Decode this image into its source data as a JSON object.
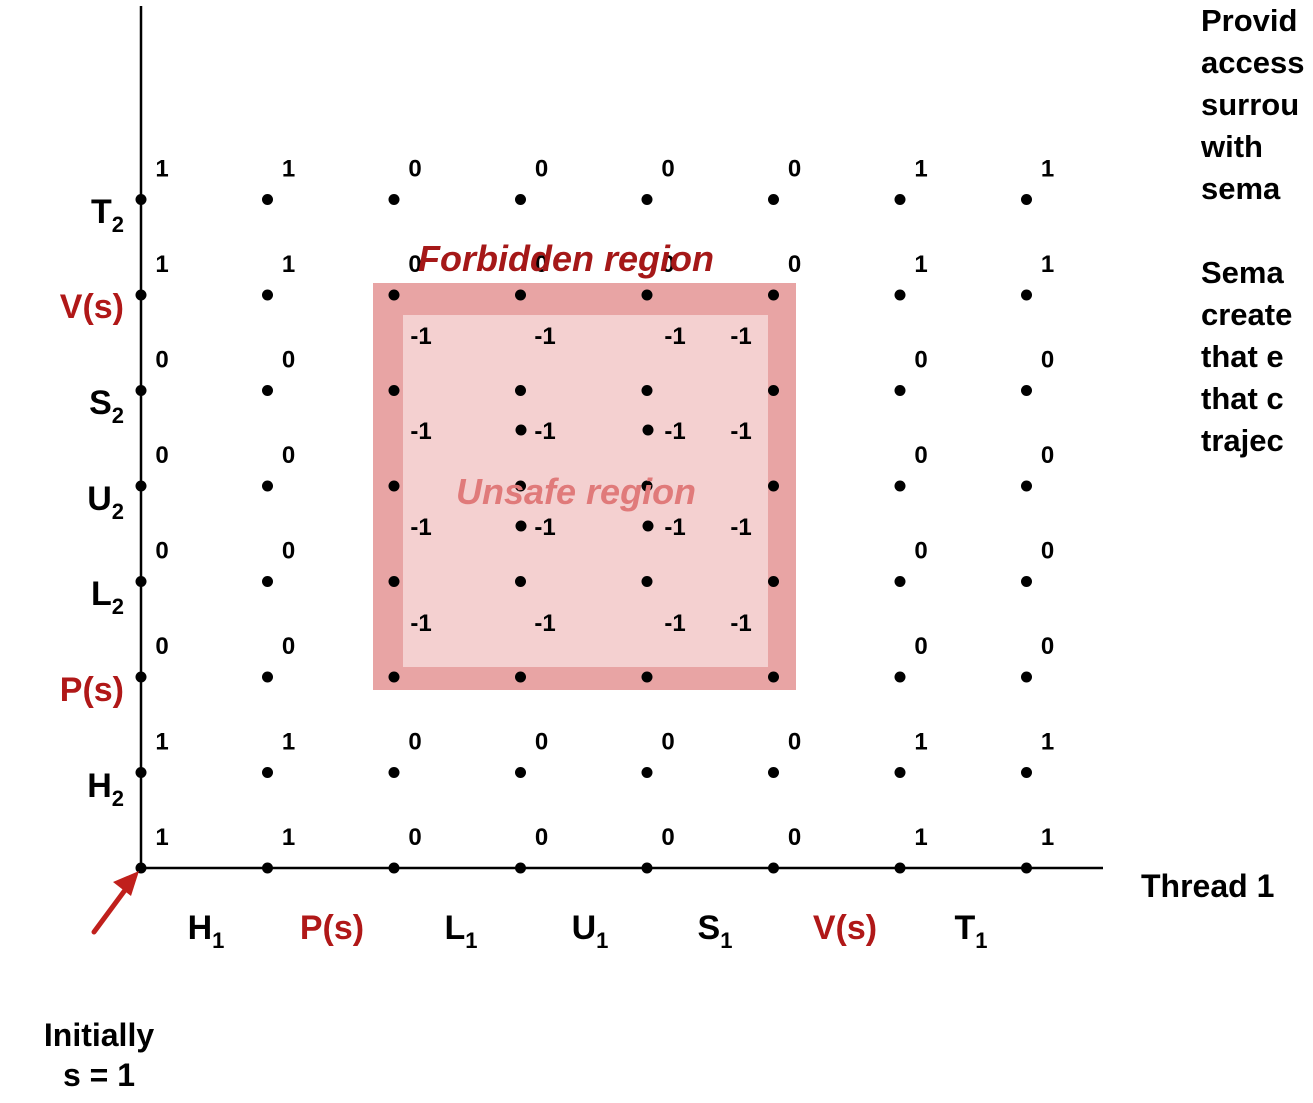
{
  "thread1_events": [
    {
      "letter": "H",
      "sub": "1",
      "color": "#000000"
    },
    {
      "letter": "P(s)",
      "sub": "",
      "color": "#b01818"
    },
    {
      "letter": "L",
      "sub": "1",
      "color": "#000000"
    },
    {
      "letter": "U",
      "sub": "1",
      "color": "#000000"
    },
    {
      "letter": "S",
      "sub": "1",
      "color": "#000000"
    },
    {
      "letter": "V(s)",
      "sub": "",
      "color": "#b01818"
    },
    {
      "letter": "T",
      "sub": "1",
      "color": "#000000"
    }
  ],
  "thread2_events": [
    {
      "letter": "H",
      "sub": "2",
      "color": "#000000"
    },
    {
      "letter": "P(s)",
      "sub": "",
      "color": "#b01818"
    },
    {
      "letter": "L",
      "sub": "2",
      "color": "#000000"
    },
    {
      "letter": "U",
      "sub": "2",
      "color": "#000000"
    },
    {
      "letter": "S",
      "sub": "2",
      "color": "#000000"
    },
    {
      "letter": "V(s)",
      "sub": "",
      "color": "#b01818"
    },
    {
      "letter": "T",
      "sub": "2",
      "color": "#000000"
    }
  ],
  "grid_values": [
    [
      "1",
      "1",
      "0",
      "0",
      "0",
      "0",
      "1",
      "1"
    ],
    [
      "1",
      "1",
      "0",
      "0",
      "0",
      "0",
      "1",
      "1"
    ],
    [
      "0",
      "0",
      "",
      "",
      "",
      "",
      "0",
      "0"
    ],
    [
      "0",
      "0",
      "",
      "",
      "",
      "",
      "0",
      "0"
    ],
    [
      "0",
      "0",
      "",
      "",
      "",
      "",
      "0",
      "0"
    ],
    [
      "0",
      "0",
      "",
      "",
      "",
      "",
      "0",
      "0"
    ],
    [
      "1",
      "1",
      "0",
      "0",
      "0",
      "0",
      "1",
      "1"
    ],
    [
      "1",
      "1",
      "0",
      "0",
      "0",
      "0",
      "1",
      "1"
    ]
  ],
  "unsafe_values": [
    [
      "-1",
      "-1",
      "-1",
      "-1"
    ],
    [
      "-1",
      "-1",
      "-1",
      "-1"
    ],
    [
      "-1",
      "-1",
      "-1",
      "-1"
    ],
    [
      "-1",
      "-1",
      "-1",
      "-1"
    ]
  ],
  "forbidden_region_label": "Forbidden region",
  "unsafe_region_label": "Unsafe region",
  "x_axis_label": "Thread 1",
  "initial_state": {
    "line1": "Initially",
    "line2": "s = 1"
  },
  "side_text": {
    "para1": [
      "Provid",
      "access",
      "surrou",
      "with",
      "sema"
    ],
    "para2": [
      "Sema",
      "create",
      "that e",
      "that c",
      "trajec"
    ]
  },
  "colors": {
    "forbidden_band": "#e8a4a4",
    "unsafe_fill": "#f4d0d0",
    "accent_red": "#b01818",
    "arrow": "#c0201c"
  }
}
